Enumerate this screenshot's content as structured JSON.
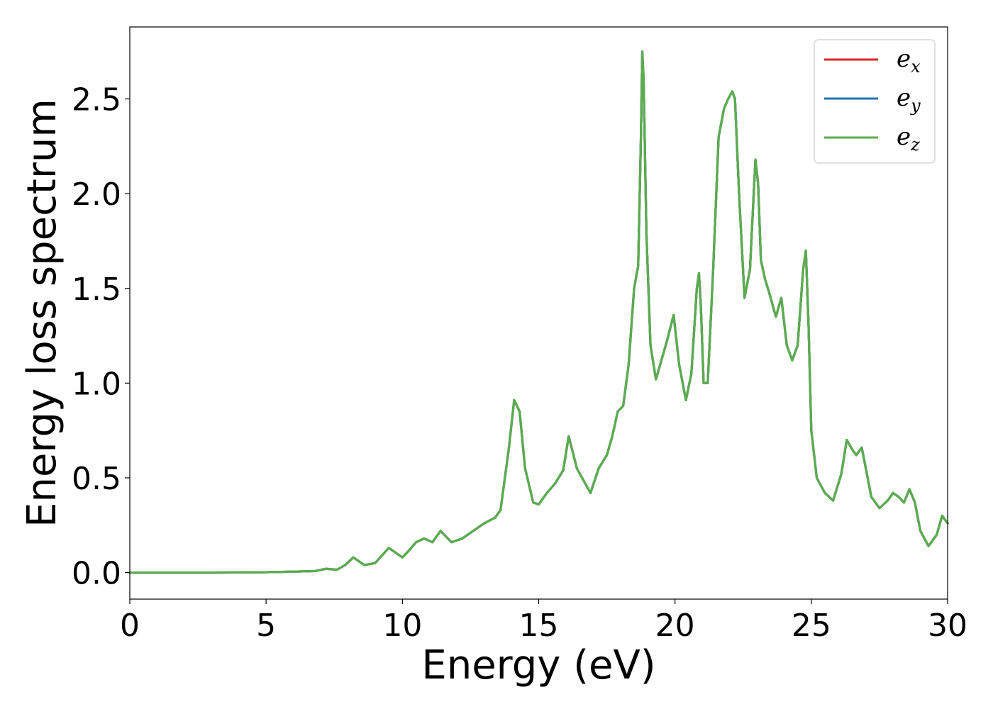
{
  "chart_data": {
    "type": "line",
    "title": "",
    "xlabel": "Energy (eV)",
    "ylabel": "Energy loss spectrum",
    "xlim": [
      0,
      30
    ],
    "ylim": [
      -0.14,
      2.88
    ],
    "xticks": [
      0,
      5,
      10,
      15,
      20,
      25,
      30
    ],
    "xtick_labels": [
      "0",
      "5",
      "10",
      "15",
      "20",
      "25",
      "30"
    ],
    "yticks": [
      0.0,
      0.5,
      1.0,
      1.5,
      2.0,
      2.5
    ],
    "ytick_labels": [
      "0.0",
      "0.5",
      "1.0",
      "1.5",
      "2.0",
      "2.5"
    ],
    "grid": false,
    "legend_position": "top-right",
    "legend": [
      {
        "base": "e",
        "sub": "x",
        "color": "#d62728"
      },
      {
        "base": "e",
        "sub": "y",
        "color": "#1f77b4"
      },
      {
        "base": "e",
        "sub": "z",
        "color": "#5aad4e"
      }
    ],
    "x": [
      0,
      3,
      5,
      6,
      6.8,
      7.2,
      7.6,
      7.9,
      8.2,
      8.6,
      9.0,
      9.5,
      9.8,
      10.0,
      10.2,
      10.5,
      10.8,
      11.1,
      11.4,
      11.8,
      12.2,
      12.6,
      13.0,
      13.4,
      13.6,
      13.9,
      14.1,
      14.3,
      14.5,
      14.8,
      15.0,
      15.3,
      15.6,
      15.9,
      16.1,
      16.4,
      16.9,
      17.2,
      17.5,
      17.7,
      17.9,
      18.1,
      18.3,
      18.5,
      18.65,
      18.75,
      18.8,
      18.85,
      18.95,
      19.1,
      19.3,
      19.5,
      19.7,
      19.95,
      20.15,
      20.4,
      20.6,
      20.8,
      20.88,
      20.95,
      21.05,
      21.2,
      21.4,
      21.6,
      21.8,
      21.95,
      22.1,
      22.2,
      22.35,
      22.55,
      22.75,
      22.95,
      23.05,
      23.15,
      23.3,
      23.45,
      23.7,
      23.9,
      24.1,
      24.3,
      24.5,
      24.7,
      24.8,
      24.9,
      25.0,
      25.2,
      25.5,
      25.8,
      26.1,
      26.3,
      26.5,
      26.65,
      26.85,
      27.0,
      27.2,
      27.5,
      27.8,
      28.0,
      28.2,
      28.4,
      28.6,
      28.8,
      29.0,
      29.3,
      29.6,
      29.8,
      30.0
    ],
    "series": [
      {
        "name": "e_x",
        "color": "#d62728",
        "values": [
          0.0,
          0.0,
          0.002,
          0.005,
          0.008,
          0.02,
          0.015,
          0.04,
          0.08,
          0.04,
          0.05,
          0.13,
          0.1,
          0.08,
          0.11,
          0.16,
          0.18,
          0.16,
          0.22,
          0.16,
          0.18,
          0.22,
          0.26,
          0.29,
          0.33,
          0.65,
          0.91,
          0.85,
          0.55,
          0.37,
          0.36,
          0.42,
          0.47,
          0.54,
          0.72,
          0.55,
          0.42,
          0.55,
          0.62,
          0.72,
          0.85,
          0.88,
          1.1,
          1.5,
          1.62,
          2.3,
          2.75,
          2.6,
          1.8,
          1.2,
          1.02,
          1.12,
          1.22,
          1.36,
          1.1,
          0.91,
          1.05,
          1.5,
          1.58,
          1.4,
          1.0,
          1.0,
          1.6,
          2.3,
          2.45,
          2.5,
          2.54,
          2.5,
          2.0,
          1.45,
          1.6,
          2.18,
          2.05,
          1.65,
          1.55,
          1.48,
          1.35,
          1.45,
          1.2,
          1.12,
          1.2,
          1.6,
          1.7,
          1.3,
          0.75,
          0.5,
          0.42,
          0.38,
          0.52,
          0.7,
          0.65,
          0.62,
          0.66,
          0.55,
          0.4,
          0.34,
          0.38,
          0.42,
          0.4,
          0.37,
          0.44,
          0.37,
          0.22,
          0.14,
          0.2,
          0.3,
          0.26
        ]
      },
      {
        "name": "e_y",
        "color": "#1f77b4",
        "values": [
          0.0,
          0.0,
          0.002,
          0.005,
          0.008,
          0.02,
          0.015,
          0.04,
          0.08,
          0.04,
          0.05,
          0.13,
          0.1,
          0.08,
          0.11,
          0.16,
          0.18,
          0.16,
          0.22,
          0.16,
          0.18,
          0.22,
          0.26,
          0.29,
          0.33,
          0.65,
          0.91,
          0.85,
          0.55,
          0.37,
          0.36,
          0.42,
          0.47,
          0.54,
          0.72,
          0.55,
          0.42,
          0.55,
          0.62,
          0.72,
          0.85,
          0.88,
          1.1,
          1.5,
          1.62,
          2.3,
          2.75,
          2.6,
          1.8,
          1.2,
          1.02,
          1.12,
          1.22,
          1.36,
          1.1,
          0.91,
          1.05,
          1.5,
          1.58,
          1.4,
          1.0,
          1.0,
          1.6,
          2.3,
          2.45,
          2.5,
          2.54,
          2.5,
          2.0,
          1.45,
          1.6,
          2.18,
          2.05,
          1.65,
          1.55,
          1.48,
          1.35,
          1.45,
          1.2,
          1.12,
          1.2,
          1.6,
          1.7,
          1.3,
          0.75,
          0.5,
          0.42,
          0.38,
          0.52,
          0.7,
          0.65,
          0.62,
          0.66,
          0.55,
          0.4,
          0.34,
          0.38,
          0.42,
          0.4,
          0.37,
          0.44,
          0.37,
          0.22,
          0.14,
          0.2,
          0.3,
          0.26
        ]
      },
      {
        "name": "e_z",
        "color": "#5aad4e",
        "values": [
          0.0,
          0.0,
          0.002,
          0.005,
          0.008,
          0.02,
          0.015,
          0.04,
          0.08,
          0.04,
          0.05,
          0.13,
          0.1,
          0.08,
          0.11,
          0.16,
          0.18,
          0.16,
          0.22,
          0.16,
          0.18,
          0.22,
          0.26,
          0.29,
          0.33,
          0.65,
          0.91,
          0.85,
          0.55,
          0.37,
          0.36,
          0.42,
          0.47,
          0.54,
          0.72,
          0.55,
          0.42,
          0.55,
          0.62,
          0.72,
          0.85,
          0.88,
          1.1,
          1.5,
          1.62,
          2.3,
          2.75,
          2.6,
          1.8,
          1.2,
          1.02,
          1.12,
          1.22,
          1.36,
          1.1,
          0.91,
          1.05,
          1.5,
          1.58,
          1.4,
          1.0,
          1.0,
          1.6,
          2.3,
          2.45,
          2.5,
          2.54,
          2.5,
          2.0,
          1.45,
          1.6,
          2.18,
          2.05,
          1.65,
          1.55,
          1.48,
          1.35,
          1.45,
          1.2,
          1.12,
          1.2,
          1.6,
          1.7,
          1.3,
          0.75,
          0.5,
          0.42,
          0.38,
          0.52,
          0.7,
          0.65,
          0.62,
          0.66,
          0.55,
          0.4,
          0.34,
          0.38,
          0.42,
          0.4,
          0.37,
          0.44,
          0.37,
          0.22,
          0.14,
          0.2,
          0.3,
          0.26
        ]
      }
    ]
  }
}
